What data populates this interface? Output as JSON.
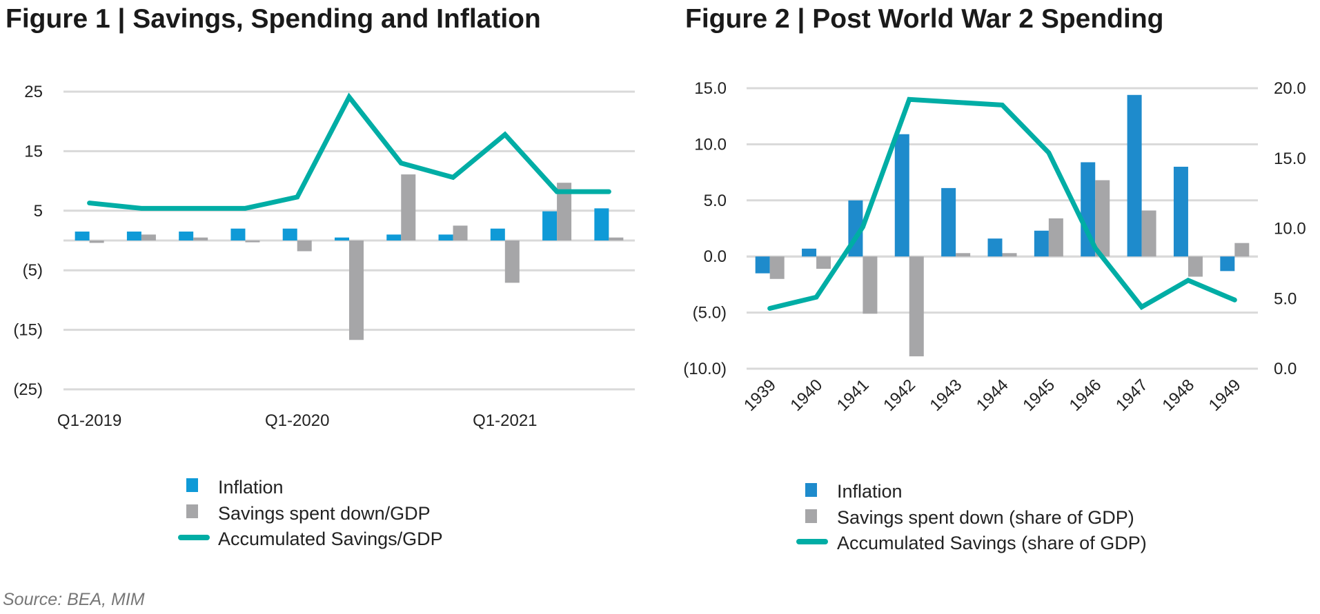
{
  "source": "Source: BEA, MIM",
  "colors": {
    "inflation1": "#0f9ad7",
    "inflation2": "#1e8bcc",
    "savings": "#a6a6a8",
    "accumulated": "#00ada5",
    "grid": "#d9d9d9"
  },
  "chart_data": [
    {
      "type": "bar",
      "title": "Figure 1 | Savings, Spending and Inflation",
      "categories": [
        "Q1-2019",
        "Q2-2019",
        "Q3-2019",
        "Q4-2019",
        "Q1-2020",
        "Q2-2020",
        "Q3-2020",
        "Q4-2020",
        "Q1-2021",
        "Q2-2021",
        "Q3-2021"
      ],
      "x_tick_labels": [
        "Q1-2019",
        "",
        "",
        "",
        "Q1-2020",
        "",
        "",
        "",
        "Q1-2021",
        "",
        ""
      ],
      "ylim": [
        -25,
        25
      ],
      "yticks": [
        25,
        15,
        5,
        -5,
        -15,
        -25
      ],
      "ytick_labels": [
        "25",
        "15",
        "5",
        "(5)",
        "(15)",
        "(25)"
      ],
      "grid": true,
      "legend_position": "bottom",
      "series": [
        {
          "name": "Inflation",
          "type": "bar",
          "values": [
            1.5,
            1.5,
            1.5,
            2.0,
            2.0,
            0.5,
            1.0,
            1.0,
            2.0,
            4.9,
            5.4
          ]
        },
        {
          "name": "Savings spent down/GDP",
          "type": "bar",
          "values": [
            -0.4,
            1.0,
            0.5,
            -0.3,
            -1.8,
            -16.7,
            11.1,
            2.5,
            -7.1,
            9.7,
            0.5
          ]
        },
        {
          "name": "Accumulated Savings/GDP",
          "type": "line",
          "values": [
            6.3,
            5.4,
            5.4,
            5.4,
            7.3,
            24.1,
            13.0,
            10.6,
            17.8,
            8.2,
            8.2
          ]
        }
      ]
    },
    {
      "type": "bar",
      "title": "Figure 2 | Post World War 2 Spending",
      "categories": [
        "1939",
        "1940",
        "1941",
        "1942",
        "1943",
        "1944",
        "1945",
        "1946",
        "1947",
        "1948",
        "1949"
      ],
      "ylim": [
        -10,
        15
      ],
      "yticks": [
        15,
        10,
        5,
        0,
        -5,
        -10
      ],
      "ytick_labels": [
        "15.0",
        "10.0",
        "5.0",
        "0.0",
        "(5.0)",
        "(10.0)"
      ],
      "y2lim": [
        0,
        20
      ],
      "y2ticks": [
        20,
        15,
        10,
        5,
        0
      ],
      "y2tick_labels": [
        "20.0",
        "15.0",
        "10.0",
        "5.0",
        "0.0"
      ],
      "grid": true,
      "legend_position": "bottom",
      "series": [
        {
          "name": "Inflation",
          "type": "bar",
          "axis": "left",
          "values": [
            -1.5,
            0.7,
            5.0,
            10.9,
            6.1,
            1.6,
            2.3,
            8.4,
            14.4,
            8.0,
            -1.3
          ]
        },
        {
          "name": "Savings spent down (share of GDP)",
          "type": "bar",
          "axis": "left",
          "values": [
            -2.0,
            -1.1,
            -5.1,
            -8.9,
            0.3,
            0.3,
            3.4,
            6.8,
            4.1,
            -1.8,
            1.2
          ]
        },
        {
          "name": "Accumulated Savings (share of GDP)",
          "type": "line",
          "axis": "right",
          "values": [
            4.3,
            5.1,
            10.1,
            19.2,
            19.0,
            18.8,
            15.4,
            8.6,
            4.4,
            6.3,
            4.9
          ]
        }
      ]
    }
  ]
}
